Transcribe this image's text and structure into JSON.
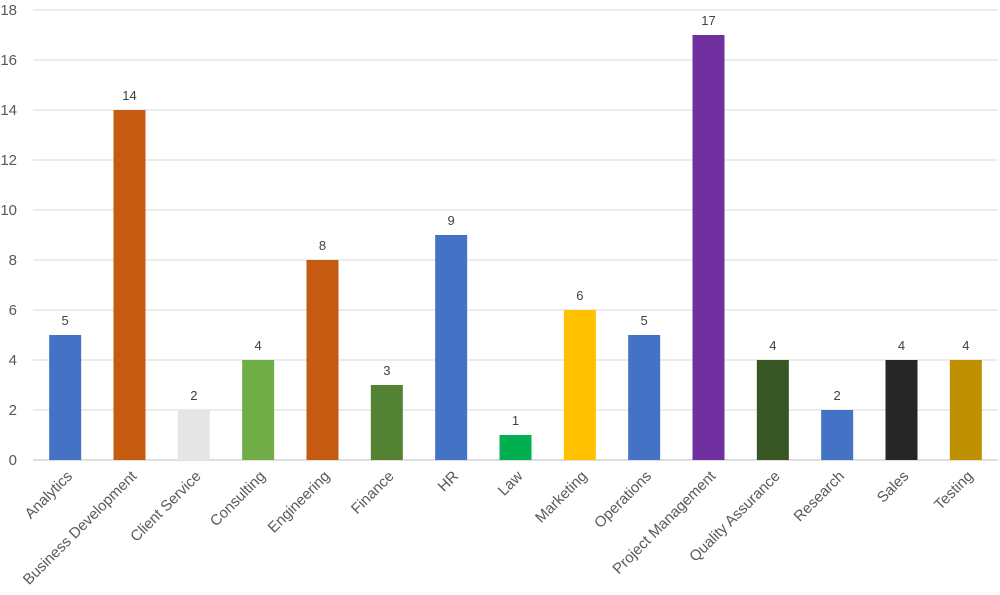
{
  "chart_data": {
    "type": "bar",
    "title": "",
    "xlabel": "",
    "ylabel": "",
    "ylim": [
      0,
      18
    ],
    "yticks": [
      0,
      2,
      4,
      6,
      8,
      10,
      12,
      14,
      16,
      18
    ],
    "grid": true,
    "legend": "none",
    "categories": [
      "Analytics",
      "Business Development",
      "Client Service",
      "Consulting",
      "Engineering",
      "Finance",
      "HR",
      "Law",
      "Marketing",
      "Operations",
      "Project Management",
      "Quality Assurance",
      "Research",
      "Sales",
      "Testing"
    ],
    "values": [
      5,
      14,
      2,
      4,
      8,
      3,
      9,
      1,
      6,
      5,
      17,
      4,
      2,
      4,
      4
    ],
    "colors": [
      "#4472C4",
      "#C55A11",
      "#E7E6E6",
      "#70AD47",
      "#C55A11",
      "#548235",
      "#4472C4",
      "#00B050",
      "#FFC000",
      "#4472C4",
      "#7030A0",
      "#375623",
      "#4472C4",
      "#262626",
      "#BF9000"
    ]
  }
}
